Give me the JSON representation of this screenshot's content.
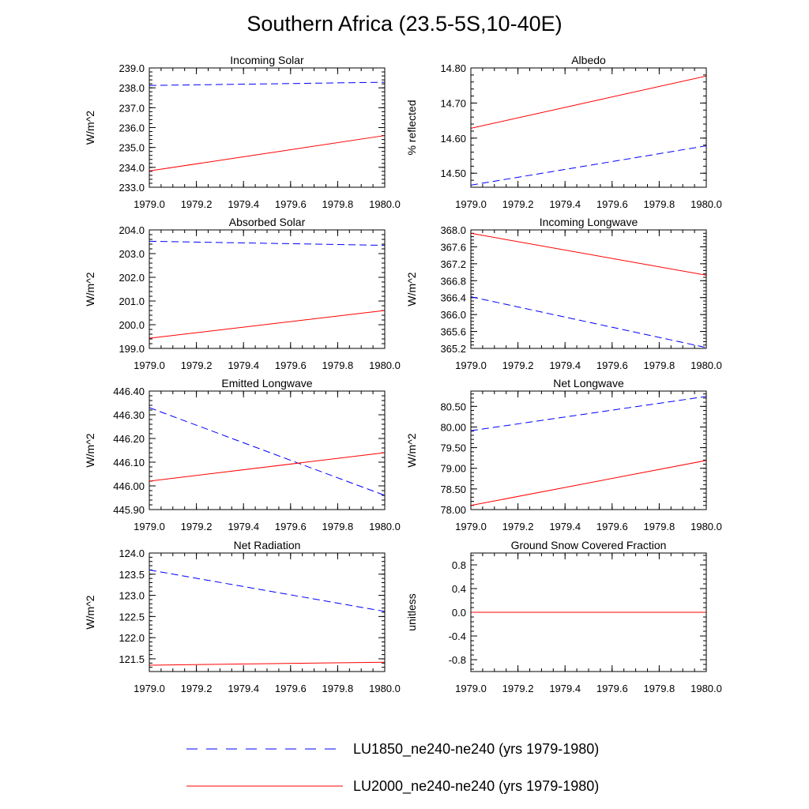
{
  "title": "Southern Africa (23.5-5S,10-40E)",
  "series": [
    {
      "name": "LU1850_ne240-ne240 (yrs 1979-1980)",
      "color": "#0000ff",
      "dash": "dashed"
    },
    {
      "name": "LU2000_ne240-ne240 (yrs 1979-1980)",
      "color": "#ff0000",
      "dash": "solid"
    }
  ],
  "chart_data": [
    {
      "type": "line",
      "title": "Incoming Solar",
      "xlabel": "",
      "ylabel": "W/m^2",
      "xlim": [
        1979.0,
        1980.0
      ],
      "ylim": [
        233.0,
        239.0
      ],
      "xticks": [
        "1979.0",
        "1979.2",
        "1979.4",
        "1979.6",
        "1979.8",
        "1980.0"
      ],
      "yticks": [
        "233.0",
        "234.0",
        "235.0",
        "236.0",
        "237.0",
        "238.0",
        "239.0"
      ],
      "series": [
        {
          "name": "LU1850_ne240-ne240 (yrs 1979-1980)",
          "x": [
            1979.0,
            1980.0
          ],
          "values": [
            238.12,
            238.28
          ]
        },
        {
          "name": "LU2000_ne240-ne240 (yrs 1979-1980)",
          "x": [
            1979.0,
            1980.0
          ],
          "values": [
            233.82,
            235.6
          ]
        }
      ]
    },
    {
      "type": "line",
      "title": "Albedo",
      "xlabel": "",
      "ylabel": "% reflected",
      "xlim": [
        1979.0,
        1980.0
      ],
      "ylim": [
        14.46,
        14.8
      ],
      "xticks": [
        "1979.0",
        "1979.2",
        "1979.4",
        "1979.6",
        "1979.8",
        "1980.0"
      ],
      "yticks": [
        "14.50",
        "14.60",
        "14.70",
        "14.80"
      ],
      "series": [
        {
          "name": "LU1850_ne240-ne240 (yrs 1979-1980)",
          "x": [
            1979.0,
            1980.0
          ],
          "values": [
            14.466,
            14.578
          ]
        },
        {
          "name": "LU2000_ne240-ne240 (yrs 1979-1980)",
          "x": [
            1979.0,
            1980.0
          ],
          "values": [
            14.628,
            14.777
          ]
        }
      ]
    },
    {
      "type": "line",
      "title": "Absorbed Solar",
      "xlabel": "",
      "ylabel": "W/m^2",
      "xlim": [
        1979.0,
        1980.0
      ],
      "ylim": [
        199.0,
        204.0
      ],
      "xticks": [
        "1979.0",
        "1979.2",
        "1979.4",
        "1979.6",
        "1979.8",
        "1980.0"
      ],
      "yticks": [
        "199.0",
        "200.0",
        "201.0",
        "202.0",
        "203.0",
        "204.0"
      ],
      "series": [
        {
          "name": "LU1850_ne240-ne240 (yrs 1979-1980)",
          "x": [
            1979.0,
            1980.0
          ],
          "values": [
            203.52,
            203.35
          ]
        },
        {
          "name": "LU2000_ne240-ne240 (yrs 1979-1980)",
          "x": [
            1979.0,
            1980.0
          ],
          "values": [
            199.43,
            200.6
          ]
        }
      ]
    },
    {
      "type": "line",
      "title": "Incoming Longwave",
      "xlabel": "",
      "ylabel": "W/m^2",
      "xlim": [
        1979.0,
        1980.0
      ],
      "ylim": [
        365.2,
        368.0
      ],
      "xticks": [
        "1979.0",
        "1979.2",
        "1979.4",
        "1979.6",
        "1979.8",
        "1980.0"
      ],
      "yticks": [
        "365.2",
        "365.6",
        "366.0",
        "366.4",
        "366.8",
        "367.2",
        "367.6",
        "368.0"
      ],
      "series": [
        {
          "name": "LU1850_ne240-ne240 (yrs 1979-1980)",
          "x": [
            1979.0,
            1980.0
          ],
          "values": [
            366.42,
            365.22
          ]
        },
        {
          "name": "LU2000_ne240-ne240 (yrs 1979-1980)",
          "x": [
            1979.0,
            1980.0
          ],
          "values": [
            367.92,
            366.93
          ]
        }
      ]
    },
    {
      "type": "line",
      "title": "Emitted Longwave",
      "xlabel": "",
      "ylabel": "W/m^2",
      "xlim": [
        1979.0,
        1980.0
      ],
      "ylim": [
        445.9,
        446.4
      ],
      "xticks": [
        "1979.0",
        "1979.2",
        "1979.4",
        "1979.6",
        "1979.8",
        "1980.0"
      ],
      "yticks": [
        "445.90",
        "446.00",
        "446.10",
        "446.20",
        "446.30",
        "446.40"
      ],
      "series": [
        {
          "name": "LU1850_ne240-ne240 (yrs 1979-1980)",
          "x": [
            1979.0,
            1980.0
          ],
          "values": [
            446.33,
            445.96
          ]
        },
        {
          "name": "LU2000_ne240-ne240 (yrs 1979-1980)",
          "x": [
            1979.0,
            1980.0
          ],
          "values": [
            446.02,
            446.14
          ]
        }
      ]
    },
    {
      "type": "line",
      "title": "Net Longwave",
      "xlabel": "",
      "ylabel": "W/m^2",
      "xlim": [
        1979.0,
        1980.0
      ],
      "ylim": [
        78.0,
        80.87
      ],
      "xticks": [
        "1979.0",
        "1979.2",
        "1979.4",
        "1979.6",
        "1979.8",
        "1980.0"
      ],
      "yticks": [
        "78.00",
        "78.50",
        "79.00",
        "79.50",
        "80.00",
        "80.50"
      ],
      "series": [
        {
          "name": "LU1850_ne240-ne240 (yrs 1979-1980)",
          "x": [
            1979.0,
            1980.0
          ],
          "values": [
            79.91,
            80.74
          ]
        },
        {
          "name": "LU2000_ne240-ne240 (yrs 1979-1980)",
          "x": [
            1979.0,
            1980.0
          ],
          "values": [
            78.1,
            79.19
          ]
        }
      ]
    },
    {
      "type": "line",
      "title": "Net Radiation",
      "xlabel": "",
      "ylabel": "W/m^2",
      "xlim": [
        1979.0,
        1980.0
      ],
      "ylim": [
        121.2,
        124.0
      ],
      "xticks": [
        "1979.0",
        "1979.2",
        "1979.4",
        "1979.6",
        "1979.8",
        "1980.0"
      ],
      "yticks": [
        "121.5",
        "122.0",
        "122.5",
        "123.0",
        "123.5",
        "124.0"
      ],
      "series": [
        {
          "name": "LU1850_ne240-ne240 (yrs 1979-1980)",
          "x": [
            1979.0,
            1980.0
          ],
          "values": [
            123.6,
            122.62
          ]
        },
        {
          "name": "LU2000_ne240-ne240 (yrs 1979-1980)",
          "x": [
            1979.0,
            1980.0
          ],
          "values": [
            121.35,
            121.42
          ]
        }
      ]
    },
    {
      "type": "line",
      "title": "Ground Snow Covered Fraction",
      "xlabel": "",
      "ylabel": "unitless",
      "xlim": [
        1979.0,
        1980.0
      ],
      "ylim": [
        -1.0,
        1.0
      ],
      "xticks": [
        "1979.0",
        "1979.2",
        "1979.4",
        "1979.6",
        "1979.8",
        "1980.0"
      ],
      "yticks": [
        "-0.8",
        "-0.4",
        "0.0",
        "0.4",
        "0.8"
      ],
      "series": [
        {
          "name": "LU1850_ne240-ne240 (yrs 1979-1980)",
          "x": [
            1979.0,
            1980.0
          ],
          "values": [
            0.0,
            0.0
          ]
        },
        {
          "name": "LU2000_ne240-ne240 (yrs 1979-1980)",
          "x": [
            1979.0,
            1980.0
          ],
          "values": [
            0.0,
            0.0
          ]
        }
      ]
    }
  ]
}
